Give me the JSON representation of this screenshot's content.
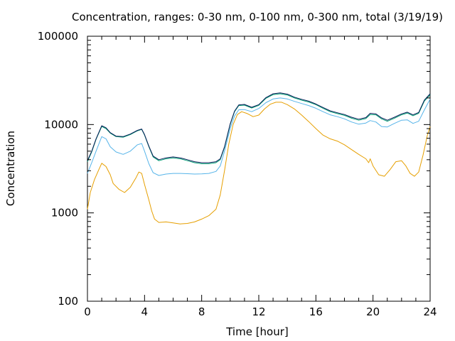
{
  "chart_data": {
    "type": "line",
    "title": "Concentration, ranges: 0-30 nm, 0-100 nm, 0-300 nm, total (3/19/19)",
    "xlabel": "Time [hour]",
    "ylabel": "Concentration",
    "xlim": [
      0,
      24
    ],
    "ylim": [
      100,
      100000
    ],
    "y_scale": "log",
    "x_ticks": [
      0,
      4,
      8,
      12,
      16,
      20,
      24
    ],
    "x_tick_labels": [
      "0",
      "4",
      "8",
      "12",
      "16",
      "20",
      "24"
    ],
    "y_ticks": [
      100,
      1000,
      10000,
      100000
    ],
    "y_tick_labels": [
      "100",
      "1000",
      "10000",
      "100000"
    ],
    "grid": false,
    "legend": "none",
    "series": [
      {
        "color": "#e69f00",
        "x": [
          0,
          0.2,
          0.5,
          0.8,
          1.0,
          1.3,
          1.6,
          1.8,
          2.2,
          2.6,
          3.0,
          3.4,
          3.6,
          3.8,
          4.0,
          4.3,
          4.5,
          4.7,
          5.0,
          5.5,
          6.0,
          6.5,
          7.0,
          7.5,
          8.0,
          8.5,
          9.0,
          9.3,
          9.6,
          9.9,
          10.2,
          10.5,
          10.8,
          11.2,
          11.6,
          12.0,
          12.4,
          12.8,
          13.2,
          13.6,
          14.0,
          14.5,
          15.0,
          15.5,
          16.0,
          16.5,
          17.0,
          17.5,
          18.0,
          18.5,
          19.0,
          19.5,
          19.7,
          19.8,
          20.0,
          20.4,
          20.8,
          21.2,
          21.6,
          22.0,
          22.3,
          22.6,
          22.9,
          23.2,
          23.5,
          23.8,
          24.0
        ],
        "y": [
          1100,
          1700,
          2400,
          3100,
          3650,
          3350,
          2700,
          2150,
          1850,
          1700,
          1950,
          2500,
          2900,
          2800,
          2100,
          1400,
          1050,
          850,
          780,
          790,
          770,
          750,
          760,
          790,
          850,
          930,
          1100,
          1600,
          3000,
          6000,
          10000,
          13000,
          14000,
          13300,
          12300,
          12800,
          15000,
          17000,
          17900,
          17900,
          16800,
          15000,
          12800,
          10800,
          9000,
          7600,
          6900,
          6500,
          5900,
          5200,
          4600,
          4100,
          3700,
          4100,
          3400,
          2700,
          2600,
          3100,
          3800,
          3900,
          3400,
          2800,
          2600,
          2900,
          4500,
          7500,
          9500
        ]
      },
      {
        "color": "#56b4e9",
        "x": [
          0,
          0.3,
          0.6,
          1.0,
          1.3,
          1.6,
          2.0,
          2.5,
          3.0,
          3.5,
          3.8,
          4.0,
          4.3,
          4.6,
          5.0,
          5.5,
          6.0,
          6.5,
          7.0,
          7.5,
          8.0,
          8.5,
          9.0,
          9.3,
          9.6,
          10.0,
          10.3,
          10.6,
          11.0,
          11.5,
          12.0,
          12.5,
          13.0,
          13.5,
          14.0,
          14.5,
          15.0,
          15.5,
          16.0,
          16.5,
          17.0,
          17.5,
          18.0,
          18.5,
          19.0,
          19.5,
          19.8,
          20.2,
          20.6,
          21.0,
          21.5,
          22.0,
          22.4,
          22.8,
          23.2,
          23.6,
          24.0
        ],
        "y": [
          2800,
          3700,
          5000,
          7300,
          6900,
          5600,
          4900,
          4600,
          5000,
          5900,
          6100,
          5000,
          3600,
          2850,
          2650,
          2750,
          2800,
          2800,
          2780,
          2750,
          2770,
          2800,
          2950,
          3400,
          5000,
          9000,
          12500,
          14700,
          14800,
          14000,
          15200,
          17700,
          19500,
          20000,
          19500,
          18300,
          17300,
          16400,
          15300,
          14000,
          12900,
          12300,
          11600,
          10700,
          10100,
          10400,
          11100,
          10700,
          9500,
          9400,
          10300,
          11200,
          11300,
          10300,
          10900,
          14700,
          19400
        ]
      },
      {
        "color": "#009e73",
        "x": [
          0,
          0.3,
          0.6,
          1.0,
          1.3,
          1.6,
          2.0,
          2.5,
          3.0,
          3.5,
          3.8,
          4.0,
          4.3,
          4.6,
          5.0,
          5.5,
          6.0,
          6.5,
          7.0,
          7.5,
          8.0,
          8.5,
          9.0,
          9.3,
          9.6,
          10.0,
          10.3,
          10.6,
          11.0,
          11.5,
          12.0,
          12.5,
          13.0,
          13.5,
          14.0,
          14.5,
          15.0,
          15.5,
          16.0,
          16.5,
          17.0,
          17.5,
          18.0,
          18.5,
          19.0,
          19.5,
          19.8,
          20.2,
          20.6,
          21.0,
          21.5,
          22.0,
          22.4,
          22.8,
          23.2,
          23.6,
          24.0
        ],
        "y": [
          3800,
          4900,
          6800,
          9500,
          9000,
          8000,
          7300,
          7200,
          7700,
          8500,
          8800,
          7600,
          5600,
          4300,
          3900,
          4100,
          4200,
          4100,
          3900,
          3700,
          3600,
          3600,
          3700,
          4000,
          5500,
          10000,
          14000,
          16400,
          16600,
          15400,
          16500,
          19800,
          21800,
          22300,
          21600,
          20000,
          18900,
          18000,
          16800,
          15300,
          14000,
          13300,
          12700,
          11800,
          11200,
          11700,
          13000,
          12900,
          11600,
          10900,
          11800,
          12900,
          13500,
          12600,
          13400,
          18500,
          21700
        ]
      },
      {
        "color": "#0b1f5a",
        "x": [
          0,
          0.3,
          0.6,
          1.0,
          1.3,
          1.6,
          2.0,
          2.5,
          3.0,
          3.5,
          3.8,
          4.0,
          4.3,
          4.6,
          5.0,
          5.5,
          6.0,
          6.5,
          7.0,
          7.5,
          8.0,
          8.5,
          9.0,
          9.3,
          9.6,
          10.0,
          10.3,
          10.6,
          11.0,
          11.5,
          12.0,
          12.5,
          13.0,
          13.5,
          14.0,
          14.5,
          15.0,
          15.5,
          16.0,
          16.5,
          17.0,
          17.5,
          18.0,
          18.5,
          19.0,
          19.5,
          19.8,
          20.2,
          20.6,
          21.0,
          21.5,
          22.0,
          22.4,
          22.8,
          23.2,
          23.6,
          24.0
        ],
        "y": [
          3900,
          5000,
          6900,
          9700,
          9200,
          8100,
          7400,
          7300,
          7800,
          8600,
          8900,
          7700,
          5700,
          4400,
          4000,
          4200,
          4300,
          4200,
          4000,
          3800,
          3700,
          3700,
          3800,
          4100,
          5600,
          10200,
          14200,
          16700,
          16900,
          15700,
          16800,
          20200,
          22300,
          22800,
          22100,
          20400,
          19300,
          18400,
          17100,
          15600,
          14300,
          13600,
          13000,
          12100,
          11500,
          12000,
          13400,
          13200,
          11900,
          11200,
          12100,
          13200,
          13800,
          12900,
          13700,
          19000,
          22300
        ]
      }
    ]
  }
}
